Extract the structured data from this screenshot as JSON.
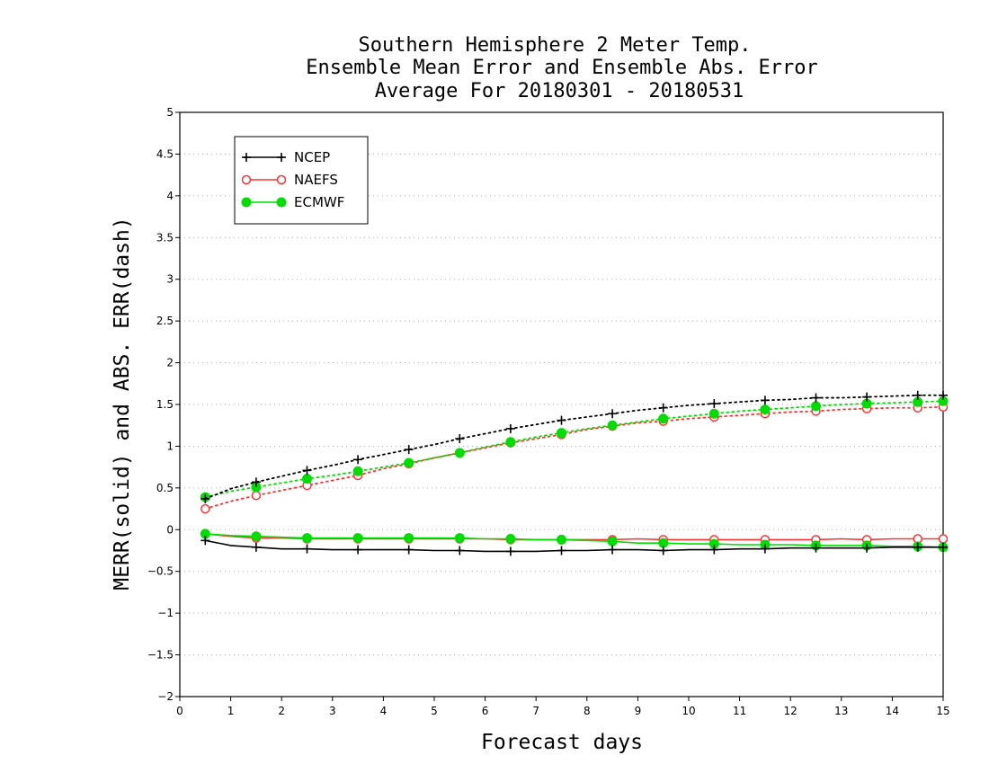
{
  "chart_data": {
    "type": "line",
    "title_lines": [
      "Southern Hemisphere 2 Meter Temp.",
      "Ensemble Mean Error and Ensemble Abs. Error",
      "Average For 20180301 - 20180531"
    ],
    "xlabel": "Forecast days",
    "ylabel": "MERR(solid) and ABS. ERR(dash)",
    "xlim": [
      0,
      15
    ],
    "ylim": [
      -2,
      5
    ],
    "xticks": [
      "0",
      "1",
      "2",
      "3",
      "4",
      "5",
      "6",
      "7",
      "8",
      "9",
      "10",
      "11",
      "12",
      "13",
      "14",
      "15"
    ],
    "yticks": [
      "5",
      "4.5",
      "4",
      "3.5",
      "3",
      "2.5",
      "2",
      "1.5",
      "1",
      "0.5",
      "0",
      "-0.5",
      "-1",
      "-1.5",
      "-2"
    ],
    "grid": true,
    "legend_position": "top-left",
    "x": [
      0.5,
      1,
      1.5,
      2,
      2.5,
      3,
      3.5,
      4,
      4.5,
      5,
      5.5,
      6,
      6.5,
      7,
      7.5,
      8,
      8.5,
      9,
      9.5,
      10,
      10.5,
      11,
      11.5,
      12,
      12.5,
      13,
      13.5,
      14,
      14.5,
      15
    ],
    "series": [
      {
        "name": "NCEP",
        "color": "#000000",
        "marker": "plus",
        "merr": [
          -0.13,
          -0.19,
          -0.21,
          -0.23,
          -0.23,
          -0.24,
          -0.24,
          -0.24,
          -0.24,
          -0.25,
          -0.25,
          -0.26,
          -0.26,
          -0.26,
          -0.25,
          -0.25,
          -0.24,
          -0.24,
          -0.25,
          -0.24,
          -0.24,
          -0.23,
          -0.23,
          -0.22,
          -0.22,
          -0.22,
          -0.22,
          -0.21,
          -0.21,
          -0.21
        ],
        "abs_err": [
          0.37,
          0.49,
          0.57,
          0.64,
          0.71,
          0.77,
          0.84,
          0.9,
          0.96,
          1.02,
          1.09,
          1.15,
          1.21,
          1.26,
          1.31,
          1.35,
          1.39,
          1.43,
          1.46,
          1.49,
          1.51,
          1.53,
          1.55,
          1.56,
          1.58,
          1.58,
          1.59,
          1.6,
          1.61,
          1.61
        ]
      },
      {
        "name": "NAEFS",
        "color": "#ff3333",
        "marker": "open-circle",
        "merr": [
          -0.05,
          -0.08,
          -0.1,
          -0.1,
          -0.11,
          -0.11,
          -0.11,
          -0.11,
          -0.11,
          -0.11,
          -0.11,
          -0.11,
          -0.12,
          -0.12,
          -0.12,
          -0.12,
          -0.12,
          -0.11,
          -0.12,
          -0.12,
          -0.12,
          -0.12,
          -0.12,
          -0.12,
          -0.12,
          -0.11,
          -0.12,
          -0.11,
          -0.11,
          -0.11
        ],
        "abs_err": [
          0.25,
          0.34,
          0.41,
          0.47,
          0.53,
          0.59,
          0.65,
          0.73,
          0.79,
          0.86,
          0.92,
          0.98,
          1.04,
          1.09,
          1.14,
          1.2,
          1.24,
          1.28,
          1.3,
          1.33,
          1.35,
          1.37,
          1.39,
          1.41,
          1.42,
          1.44,
          1.45,
          1.46,
          1.46,
          1.47
        ]
      },
      {
        "name": "ECMWF",
        "color": "#00dd00",
        "marker": "filled-circle",
        "merr": [
          -0.05,
          -0.07,
          -0.08,
          -0.09,
          -0.1,
          -0.1,
          -0.1,
          -0.1,
          -0.1,
          -0.1,
          -0.1,
          -0.11,
          -0.11,
          -0.12,
          -0.12,
          -0.13,
          -0.14,
          -0.16,
          -0.16,
          -0.17,
          -0.17,
          -0.18,
          -0.18,
          -0.18,
          -0.19,
          -0.19,
          -0.19,
          -0.2,
          -0.2,
          -0.21
        ],
        "abs_err": [
          0.39,
          0.46,
          0.51,
          0.56,
          0.61,
          0.65,
          0.7,
          0.75,
          0.8,
          0.86,
          0.92,
          0.99,
          1.05,
          1.11,
          1.16,
          1.21,
          1.25,
          1.29,
          1.33,
          1.36,
          1.39,
          1.42,
          1.44,
          1.46,
          1.48,
          1.5,
          1.51,
          1.52,
          1.53,
          1.54
        ]
      }
    ]
  }
}
